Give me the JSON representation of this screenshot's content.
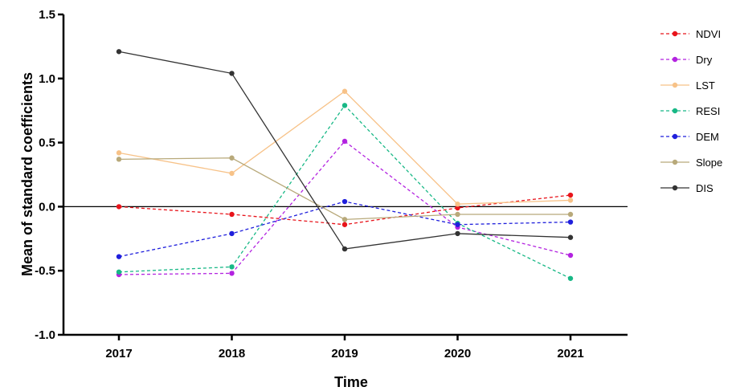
{
  "chart_data": {
    "type": "line",
    "title": "",
    "xlabel": "Time",
    "ylabel": "Mean of standard coefficients",
    "categories": [
      "2017",
      "2018",
      "2019",
      "2020",
      "2021"
    ],
    "ylim": [
      -1.0,
      1.5
    ],
    "yticks": [
      "-1.0",
      "-0.5",
      "0.0",
      "0.5",
      "1.0",
      "1.5"
    ],
    "zero_line": true,
    "grid": false,
    "legend_position": "right",
    "series": [
      {
        "name": "NDVI",
        "color": "#e8141b",
        "dashed": true,
        "marker": true,
        "values": [
          0.0,
          -0.06,
          -0.14,
          -0.01,
          0.09
        ]
      },
      {
        "name": "Dry",
        "color": "#b323e0",
        "dashed": true,
        "marker": true,
        "values": [
          -0.53,
          -0.52,
          0.51,
          -0.16,
          -0.38
        ]
      },
      {
        "name": "LST",
        "color": "#f7c288",
        "dashed": false,
        "marker": true,
        "values": [
          0.42,
          0.26,
          0.9,
          0.02,
          0.05
        ]
      },
      {
        "name": "RESI",
        "color": "#18b886",
        "dashed": true,
        "marker": true,
        "values": [
          -0.51,
          -0.47,
          0.79,
          -0.13,
          -0.56
        ]
      },
      {
        "name": "DEM",
        "color": "#1f1fdc",
        "dashed": true,
        "marker": true,
        "values": [
          -0.39,
          -0.21,
          0.04,
          -0.14,
          -0.12
        ]
      },
      {
        "name": "Slope",
        "color": "#b8a97a",
        "dashed": false,
        "marker": true,
        "values": [
          0.37,
          0.38,
          -0.1,
          -0.06,
          -0.06
        ]
      },
      {
        "name": "DIS",
        "color": "#333333",
        "dashed": false,
        "marker": true,
        "values": [
          1.21,
          1.04,
          -0.33,
          -0.21,
          -0.24
        ]
      }
    ]
  }
}
